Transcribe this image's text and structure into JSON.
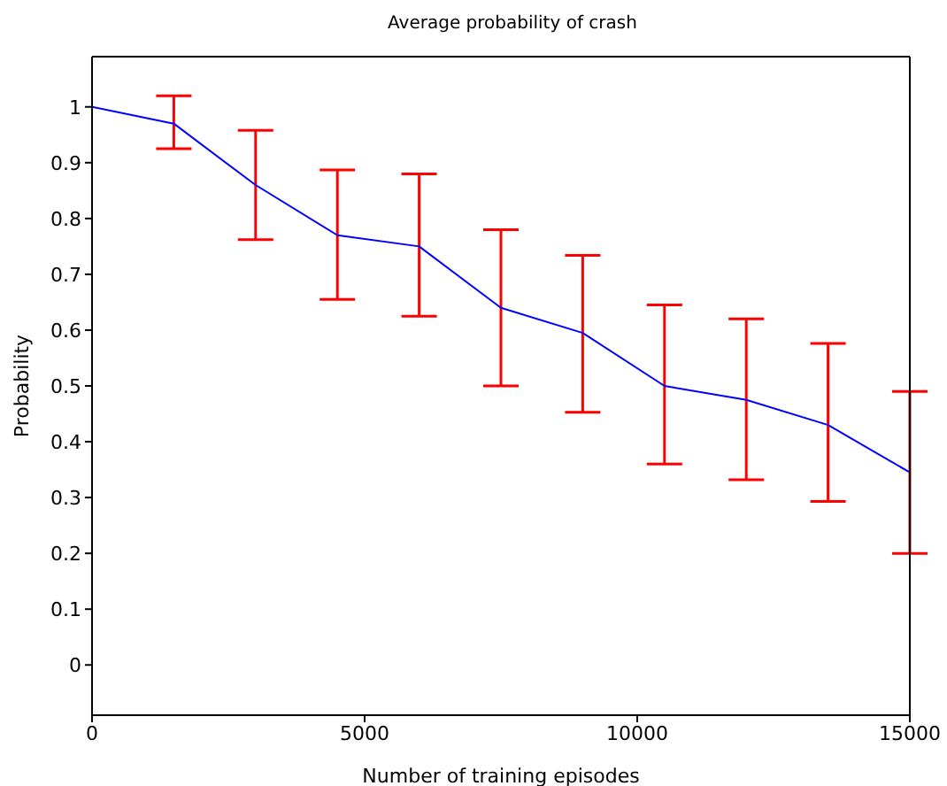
{
  "chart_data": {
    "type": "line",
    "title": "Average probability of crash",
    "xlabel": "Number of training episodes",
    "ylabel": "Probability",
    "x": [
      0,
      1500,
      3000,
      4500,
      6000,
      7500,
      9000,
      10500,
      12000,
      13500,
      15000
    ],
    "series": [
      {
        "color": "#0000ff",
        "values": [
          1,
          0.97,
          0.86,
          0.77,
          0.75,
          0.64,
          0.595,
          0.5,
          0.475,
          0.43,
          0.345
        ],
        "errors": [
          null,
          [
            0.925,
            1.02
          ],
          [
            0.762,
            0.958
          ],
          [
            0.655,
            0.887
          ],
          [
            0.625,
            0.88
          ],
          [
            0.5,
            0.78
          ],
          [
            0.453,
            0.734
          ],
          [
            0.36,
            0.645
          ],
          [
            0.332,
            0.62
          ],
          [
            0.293,
            0.576
          ],
          [
            0.2,
            0.49
          ]
        ]
      }
    ],
    "xlim": [
      0,
      15000
    ],
    "xticks": [
      0,
      5000,
      10000,
      15000
    ],
    "ylim": [
      -0.09,
      1.09
    ],
    "yticks": [
      0,
      0.1,
      0.2,
      0.3,
      0.4,
      0.5,
      0.6,
      0.7,
      0.8,
      0.9,
      1
    ],
    "grid": false,
    "legend": false
  }
}
